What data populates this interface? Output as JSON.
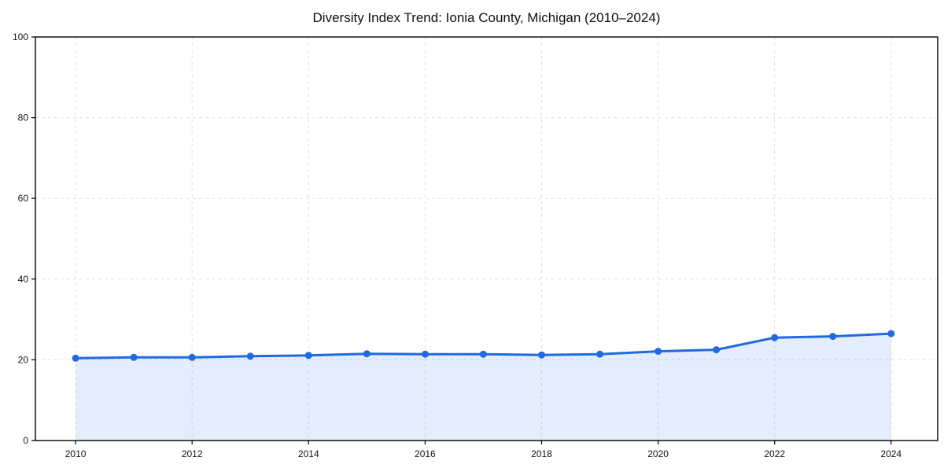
{
  "chart_data": {
    "type": "line",
    "title": "Diversity Index Trend: Ionia County, Michigan (2010–2024)",
    "xlabel": "",
    "ylabel": "",
    "x": [
      2010,
      2011,
      2012,
      2013,
      2014,
      2015,
      2016,
      2017,
      2018,
      2019,
      2020,
      2021,
      2022,
      2023,
      2024
    ],
    "values": [
      20.4,
      20.6,
      20.6,
      20.9,
      21.1,
      21.5,
      21.4,
      21.4,
      21.2,
      21.4,
      22.1,
      22.5,
      25.5,
      25.8,
      26.5
    ],
    "series_name": "Diversity Index",
    "xticks": [
      2010,
      2012,
      2014,
      2016,
      2018,
      2020,
      2022,
      2024
    ],
    "yticks": [
      0,
      20,
      40,
      60,
      80,
      100
    ],
    "xlim": [
      2009.31,
      2024.8
    ],
    "ylim": [
      0,
      100
    ],
    "grid": "on",
    "grid_style": "dashed",
    "legend": "none",
    "marker": "circle",
    "area_fill": true,
    "colors": {
      "line": "#2169e0",
      "marker": "#2169e0",
      "fill": "rgba(33,105,224,0.12)",
      "grid": "#e0e0e0",
      "frame": "#000000",
      "text": "#111111",
      "background": "#ffffff"
    }
  }
}
